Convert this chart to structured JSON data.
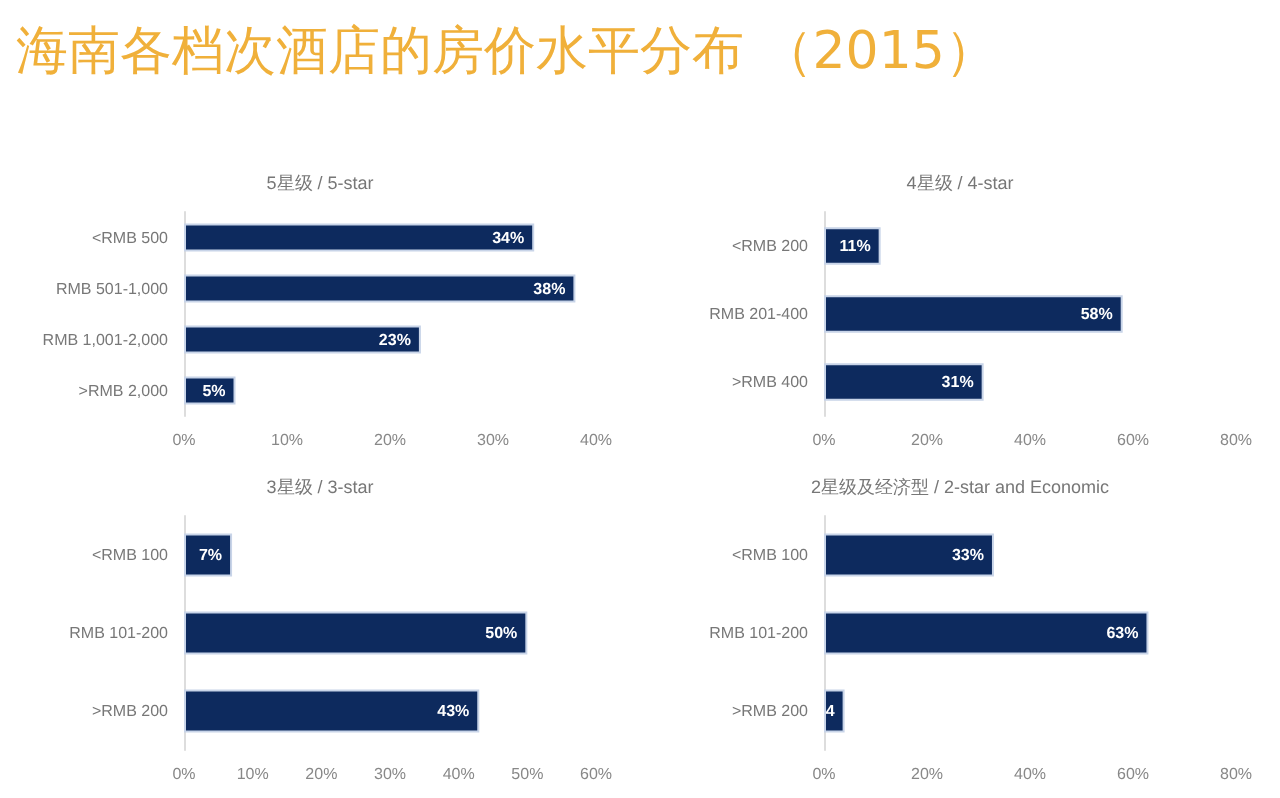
{
  "chart_data": [
    {
      "type": "other",
      "title": "海南各档次酒店的房价水平分布 （2015）"
    },
    {
      "type": "bar",
      "orientation": "horizontal",
      "title": "5星级 / 5-star",
      "categories": [
        "<RMB 500",
        "RMB 501-1,000",
        "RMB 1,001-2,000",
        ">RMB 2,000"
      ],
      "values": [
        34,
        38,
        23,
        5
      ],
      "value_labels": [
        "34%",
        "38%",
        "23%",
        "5%"
      ],
      "color": "#0d2a5e",
      "xlim": [
        0,
        40
      ],
      "xticks": [
        {
          "value": 0,
          "label": "0%"
        },
        {
          "value": 10,
          "label": "10%"
        },
        {
          "value": 20,
          "label": "20%"
        },
        {
          "value": 30,
          "label": "30%"
        },
        {
          "value": 40,
          "label": "40%"
        }
      ]
    },
    {
      "type": "bar",
      "orientation": "horizontal",
      "title": "4星级 / 4-star",
      "categories": [
        "<RMB 200",
        "RMB 201-400",
        ">RMB 400"
      ],
      "values": [
        11,
        58,
        31
      ],
      "value_labels": [
        "11%",
        "58%",
        "31%"
      ],
      "color": "#0d2a5e",
      "xlim": [
        0,
        80
      ],
      "xticks": [
        {
          "value": 0,
          "label": "0%"
        },
        {
          "value": 20,
          "label": "20%"
        },
        {
          "value": 40,
          "label": "40%"
        },
        {
          "value": 60,
          "label": "60%"
        },
        {
          "value": 80,
          "label": "80%"
        }
      ]
    },
    {
      "type": "bar",
      "orientation": "horizontal",
      "title": "3星级 / 3-star",
      "categories": [
        "<RMB 100",
        "RMB 101-200",
        ">RMB 200"
      ],
      "values": [
        7,
        50,
        43
      ],
      "value_labels": [
        "7%",
        "50%",
        "43%"
      ],
      "color": "#0d2a5e",
      "xlim": [
        0,
        60
      ],
      "xticks": [
        {
          "value": 0,
          "label": "0%"
        },
        {
          "value": 10,
          "label": "10%"
        },
        {
          "value": 20,
          "label": "20%"
        },
        {
          "value": 30,
          "label": "30%"
        },
        {
          "value": 40,
          "label": "40%"
        },
        {
          "value": 50,
          "label": "50%"
        },
        {
          "value": 60,
          "label": "60%"
        }
      ]
    },
    {
      "type": "bar",
      "orientation": "horizontal",
      "title": "2星级及经济型 / 2-star and Economic",
      "categories": [
        "<RMB 100",
        "RMB 101-200",
        ">RMB 200"
      ],
      "values": [
        33,
        63,
        4
      ],
      "value_labels": [
        "33%",
        "63%",
        "4"
      ],
      "color": "#0d2a5e",
      "xlim": [
        0,
        80
      ],
      "xticks": [
        {
          "value": 0,
          "label": "0%"
        },
        {
          "value": 20,
          "label": "20%"
        },
        {
          "value": 40,
          "label": "40%"
        },
        {
          "value": 60,
          "label": "60%"
        },
        {
          "value": 80,
          "label": "80%"
        }
      ]
    }
  ]
}
